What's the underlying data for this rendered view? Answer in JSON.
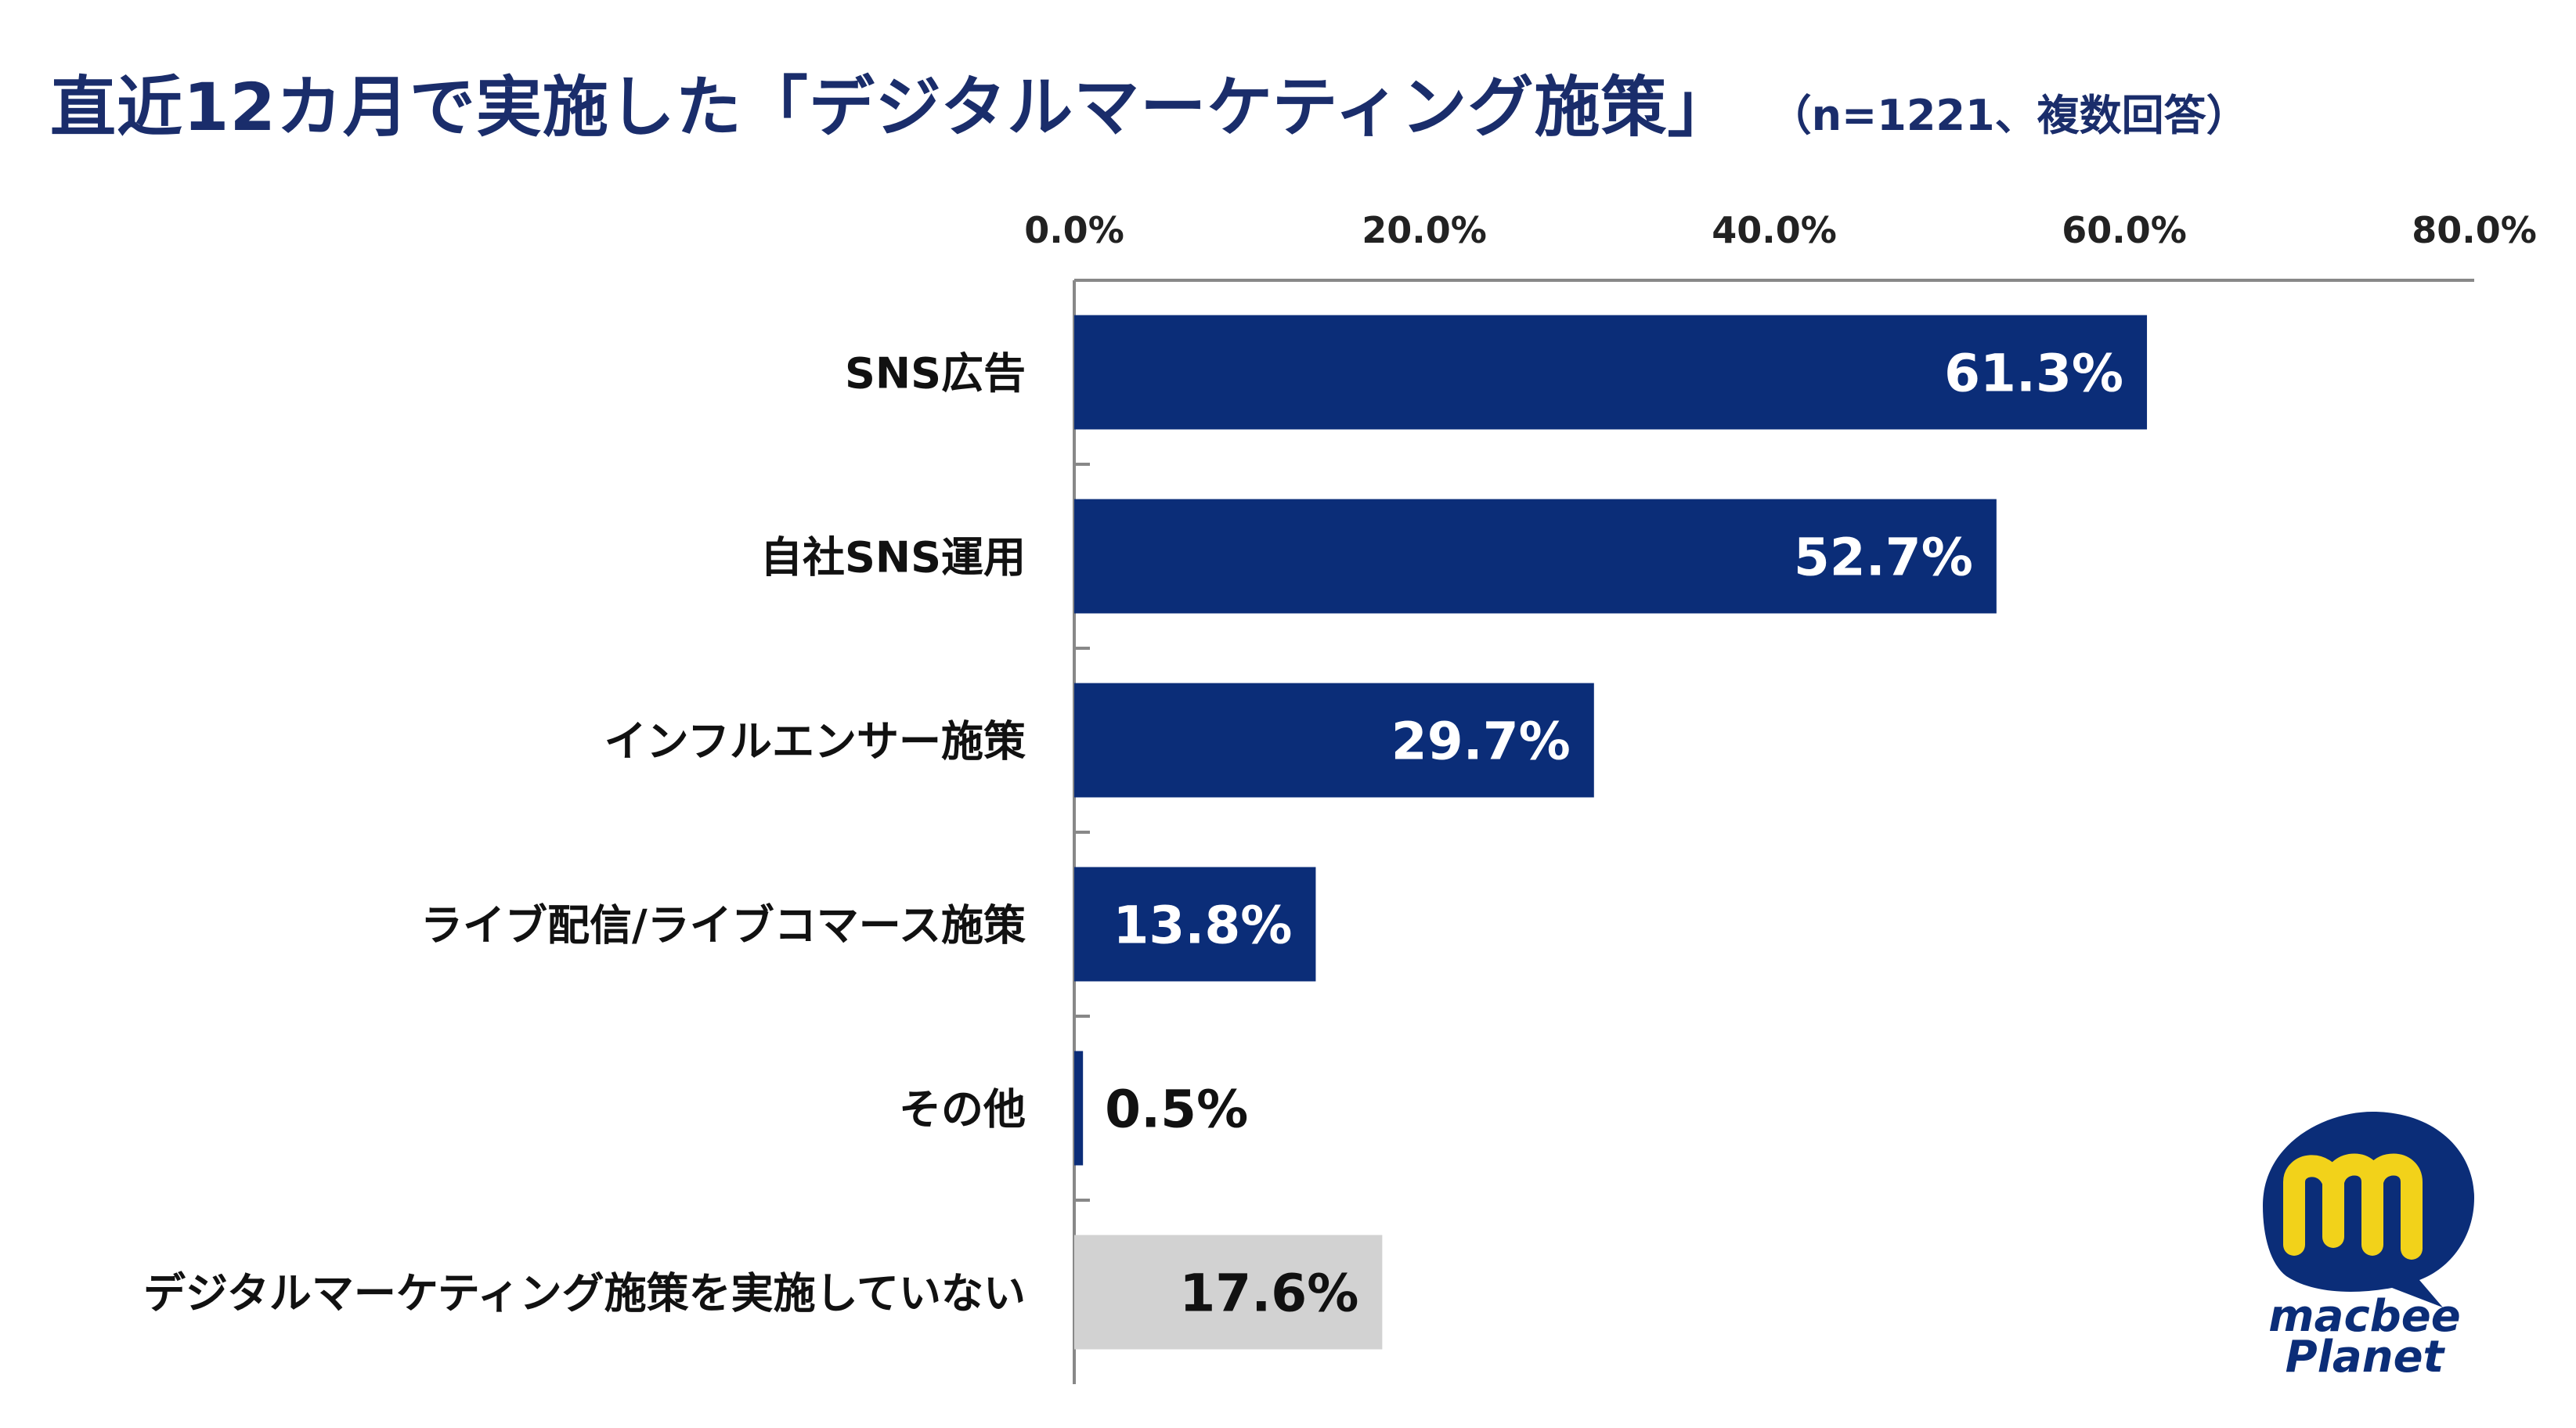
{
  "title": "直近12カ月で実施した「デジタルマーケティング施策」",
  "subtitle": "（n=1221、複数回答）",
  "logo": {
    "line1": "macbee",
    "line2": "Planet",
    "icon": "macbee-m-logo-icon"
  },
  "colors": {
    "bar": "#0b2d78",
    "bar_highlight": "#d2d2d2",
    "title": "#1a2d6b",
    "axis": "#888888"
  },
  "chart_data": {
    "type": "bar",
    "orientation": "horizontal",
    "categories": [
      "SNS広告",
      "自社SNS運用",
      "インフルエンサー施策",
      "ライブ配信/ライブコマース施策",
      "その他",
      "デジタルマーケティング施策を実施していない"
    ],
    "values": [
      61.3,
      52.7,
      29.7,
      13.8,
      0.5,
      17.6
    ],
    "value_labels": [
      "61.3%",
      "52.7%",
      "29.7%",
      "13.8%",
      "0.5%",
      "17.6%"
    ],
    "xticks": [
      "0.0%",
      "20.0%",
      "40.0%",
      "60.0%",
      "80.0%"
    ],
    "xlim": [
      0,
      80
    ],
    "xaxis_position": "top",
    "grid": false,
    "legend": "none"
  }
}
